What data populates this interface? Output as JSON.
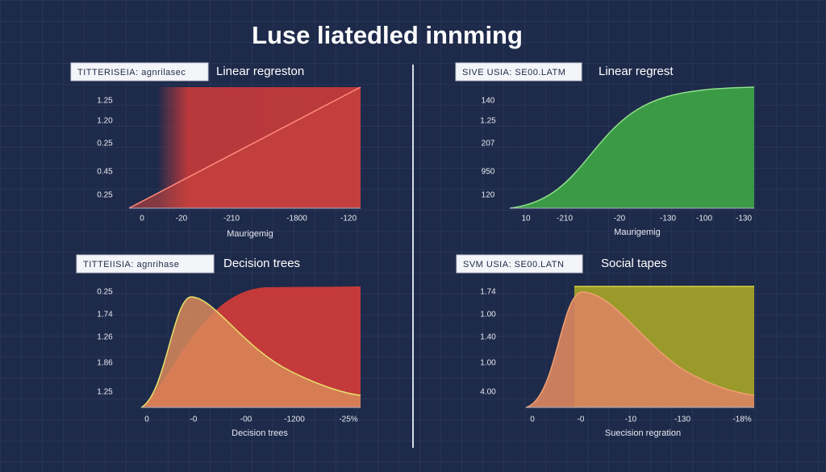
{
  "title": "Luse liatedled innming",
  "panels": [
    {
      "tag": "TITTERISEIA: agnrilasec",
      "subtitle": "Linear regreston",
      "y_labels": [
        "1.25",
        "1.20",
        "0.25",
        "0.45",
        "0.25"
      ],
      "x_labels": [
        "0",
        "-20",
        "-210",
        "-1800",
        "-120"
      ],
      "x_title": "Maurigemig"
    },
    {
      "tag": "SIVE USIA: SE00.LATM",
      "subtitle": "Linear regrest",
      "y_labels": [
        "140",
        "1.25",
        "207",
        "950",
        "120"
      ],
      "x_labels": [
        "10",
        "-210",
        "-20",
        "-130",
        "-100",
        "-130"
      ],
      "x_title": "Maurigemig"
    },
    {
      "tag": "TITTEIISIA: agnrihase",
      "subtitle": "Decision trees",
      "y_labels": [
        "0.25",
        "1.74",
        "1.26",
        "1.86",
        "1.25"
      ],
      "x_labels": [
        "0",
        "-0",
        "-00",
        "-1200",
        "-25%"
      ],
      "x_title": "Decision trees"
    },
    {
      "tag": "SVM USIA: SE00.LATN",
      "subtitle": "Social tapes",
      "y_labels": [
        "1.74",
        "1.00",
        "1.40",
        "1.00",
        "4.00"
      ],
      "x_labels": [
        "0",
        "-0",
        "-10",
        "-130",
        "-18%"
      ],
      "x_title": "Suecision regration"
    }
  ]
}
